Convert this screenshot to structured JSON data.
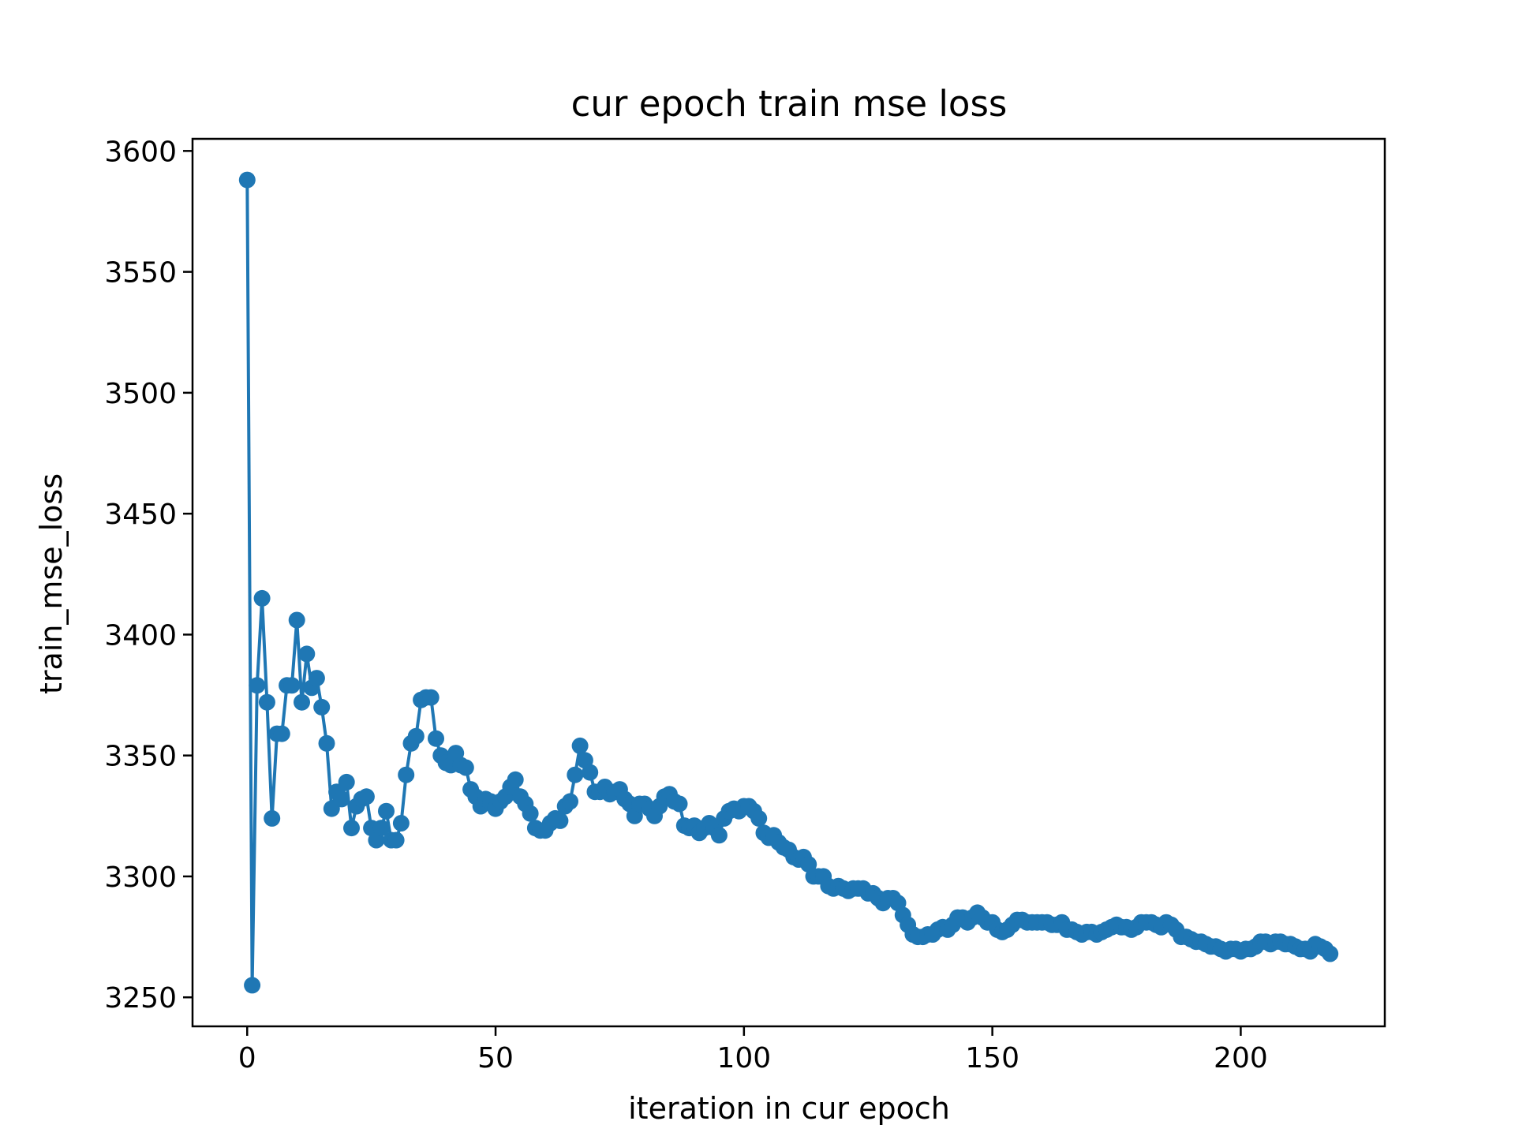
{
  "chart_data": {
    "type": "line",
    "title": "cur epoch train mse loss",
    "xlabel": "iteration in cur epoch",
    "ylabel": "train_mse_loss",
    "xlim": [
      -11,
      229
    ],
    "ylim": [
      3238,
      3605
    ],
    "xticks": [
      0,
      50,
      100,
      150,
      200
    ],
    "yticks": [
      3250,
      3300,
      3350,
      3400,
      3450,
      3500,
      3550,
      3600
    ],
    "grid": false,
    "legend": "none",
    "series": [
      {
        "color": "#1f77b4",
        "marker": "circle",
        "x": [
          0,
          1,
          2,
          3,
          4,
          5,
          6,
          7,
          8,
          9,
          10,
          11,
          12,
          13,
          14,
          15,
          16,
          17,
          18,
          19,
          20,
          21,
          22,
          23,
          24,
          25,
          26,
          27,
          28,
          29,
          30,
          31,
          32,
          33,
          34,
          35,
          36,
          37,
          38,
          39,
          40,
          41,
          42,
          43,
          44,
          45,
          46,
          47,
          48,
          49,
          50,
          51,
          52,
          53,
          54,
          55,
          56,
          57,
          58,
          59,
          60,
          61,
          62,
          63,
          64,
          65,
          66,
          67,
          68,
          69,
          70,
          71,
          72,
          73,
          74,
          75,
          76,
          77,
          78,
          79,
          80,
          81,
          82,
          83,
          84,
          85,
          86,
          87,
          88,
          89,
          90,
          91,
          92,
          93,
          94,
          95,
          96,
          97,
          98,
          99,
          100,
          101,
          102,
          103,
          104,
          105,
          106,
          107,
          108,
          109,
          110,
          111,
          112,
          113,
          114,
          115,
          116,
          117,
          118,
          119,
          120,
          121,
          122,
          123,
          124,
          125,
          126,
          127,
          128,
          129,
          130,
          131,
          132,
          133,
          134,
          135,
          136,
          137,
          138,
          139,
          140,
          141,
          142,
          143,
          144,
          145,
          146,
          147,
          148,
          149,
          150,
          151,
          152,
          153,
          154,
          155,
          156,
          157,
          158,
          159,
          160,
          161,
          162,
          163,
          164,
          165,
          166,
          167,
          168,
          169,
          170,
          171,
          172,
          173,
          174,
          175,
          176,
          177,
          178,
          179,
          180,
          181,
          182,
          183,
          184,
          185,
          186,
          187,
          188,
          189,
          190,
          191,
          192,
          193,
          194,
          195,
          196,
          197,
          198,
          199,
          200,
          201,
          202,
          203,
          204,
          205,
          206,
          207,
          208,
          209,
          210,
          211,
          212,
          213,
          214,
          215,
          216,
          217,
          218
        ],
        "y": [
          3588,
          3255,
          3379,
          3415,
          3372,
          3324,
          3359,
          3359,
          3379,
          3379,
          3406,
          3372,
          3392,
          3378,
          3382,
          3370,
          3355,
          3328,
          3335,
          3332,
          3339,
          3320,
          3329,
          3332,
          3333,
          3320,
          3315,
          3320,
          3327,
          3315,
          3315,
          3322,
          3342,
          3355,
          3358,
          3373,
          3374,
          3374,
          3357,
          3350,
          3347,
          3346,
          3351,
          3346,
          3345,
          3336,
          3333,
          3329,
          3332,
          3331,
          3328,
          3331,
          3333,
          3337,
          3340,
          3333,
          3330,
          3326,
          3320,
          3319,
          3319,
          3322,
          3324,
          3323,
          3329,
          3331,
          3342,
          3354,
          3348,
          3343,
          3335,
          3335,
          3337,
          3334,
          3335,
          3336,
          3332,
          3330,
          3325,
          3330,
          3330,
          3328,
          3325,
          3329,
          3333,
          3334,
          3331,
          3330,
          3321,
          3320,
          3321,
          3318,
          3320,
          3322,
          3320,
          3317,
          3324,
          3327,
          3328,
          3327,
          3329,
          3329,
          3327,
          3324,
          3318,
          3316,
          3317,
          3314,
          3312,
          3311,
          3308,
          3307,
          3308,
          3305,
          3300,
          3300,
          3300,
          3296,
          3295,
          3296,
          3295,
          3294,
          3295,
          3295,
          3295,
          3293,
          3293,
          3291,
          3289,
          3291,
          3291,
          3289,
          3284,
          3280,
          3276,
          3275,
          3275,
          3276,
          3276,
          3278,
          3279,
          3278,
          3280,
          3283,
          3283,
          3281,
          3283,
          3285,
          3283,
          3281,
          3281,
          3278,
          3277,
          3278,
          3280,
          3282,
          3282,
          3281,
          3281,
          3281,
          3281,
          3281,
          3280,
          3280,
          3281,
          3278,
          3278,
          3277,
          3276,
          3277,
          3277,
          3276,
          3277,
          3278,
          3279,
          3280,
          3279,
          3279,
          3278,
          3279,
          3281,
          3281,
          3281,
          3280,
          3279,
          3281,
          3280,
          3278,
          3275,
          3275,
          3274,
          3273,
          3273,
          3272,
          3271,
          3271,
          3270,
          3269,
          3270,
          3270,
          3269,
          3270,
          3270,
          3271,
          3273,
          3273,
          3272,
          3273,
          3273,
          3272,
          3272,
          3271,
          3270,
          3270,
          3269,
          3272,
          3271,
          3270,
          3268
        ]
      }
    ]
  }
}
